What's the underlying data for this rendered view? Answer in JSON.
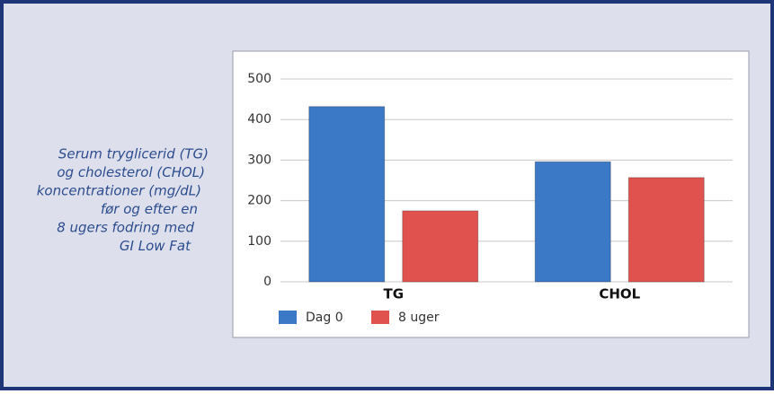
{
  "chart_data": {
    "type": "bar",
    "caption": [
      "Serum tryglicerid (TG)",
      "og cholesterol (CHOL)",
      "koncentrationer (mg/dL)",
      "før og efter en",
      "8 ugers fodring med",
      "GI Low Fat"
    ],
    "categories": [
      "TG",
      "CHOL"
    ],
    "series": [
      {
        "name": "Dag 0",
        "color": "#3b78c6",
        "values": [
          432,
          296
        ]
      },
      {
        "name": "8 uger",
        "color": "#e0524e",
        "values": [
          175,
          257
        ]
      }
    ],
    "ylim": [
      0,
      500
    ],
    "yticks": [
      0,
      100,
      200,
      300,
      400,
      500
    ],
    "grid": true,
    "legend": "bottom"
  }
}
